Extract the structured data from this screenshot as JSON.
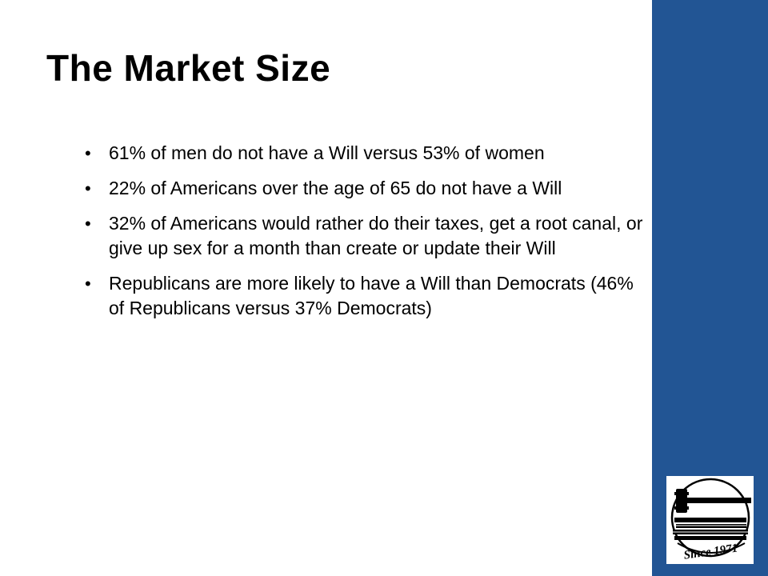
{
  "slide": {
    "title": "The Market Size",
    "bullets": [
      "61% of men do not have a Will versus 53% of women",
      "22% of Americans over the age of 65 do not have a Will",
      "32% of Americans would rather do their taxes, get a root canal, or give up sex for a month than create or update their Will",
      "Republicans are more likely to have a Will than Democrats (46% of Republicans versus 37% Democrats)"
    ]
  },
  "logo": {
    "icon": "gavel-and-books-logo",
    "text": "Since 1971"
  },
  "colors": {
    "side_band": "#225594",
    "text": "#000000",
    "background": "#ffffff"
  }
}
